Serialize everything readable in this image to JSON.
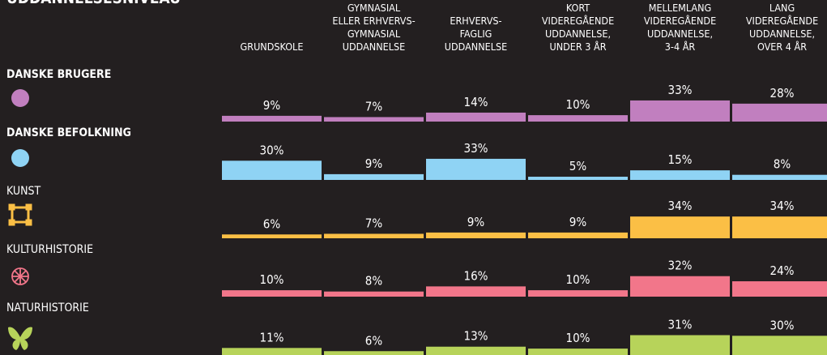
{
  "chart_data": {
    "type": "bar",
    "title": "UDDANNELSESNIVEAU",
    "categories": [
      [
        "GRUNDSKOLE"
      ],
      [
        "GYMNASIAL",
        "ELLER ERHVERVS-",
        "GYMNASIAL",
        "UDDANNELSE"
      ],
      [
        "ERHVERVS-",
        "FAGLIG",
        "UDDANNELSE"
      ],
      [
        "KORT",
        "VIDEREGÅENDE",
        "UDDANNELSE,",
        "UNDER 3 ÅR"
      ],
      [
        "MELLEMLANG",
        "VIDEREGÅENDE",
        "UDDANNELSE,",
        "3-4 ÅR"
      ],
      [
        "LANG",
        "VIDEREGÅENDE",
        "UDDANNELSE,",
        "OVER 4 ÅR"
      ]
    ],
    "series": [
      {
        "name": "DANSKE BRUGERE",
        "color": "#c17fbf",
        "values": [
          9,
          7,
          14,
          10,
          33,
          28
        ],
        "value_labels": [
          "9%",
          "7%",
          "14%",
          "10%",
          "33%",
          "28%"
        ]
      },
      {
        "name": "DANSKE BEFOLKNING",
        "color": "#8fd3f4",
        "values": [
          30,
          9,
          33,
          5,
          15,
          8
        ],
        "value_labels": [
          "30%",
          "9%",
          "33%",
          "5%",
          "15%",
          "8%"
        ]
      },
      {
        "name": "KUNST",
        "color": "#fbbf45",
        "values": [
          6,
          7,
          9,
          9,
          34,
          34
        ],
        "value_labels": [
          "6%",
          "7%",
          "9%",
          "9%",
          "34%",
          "34%"
        ]
      },
      {
        "name": "KULTURHISTORIE",
        "color": "#f2768a",
        "values": [
          10,
          8,
          16,
          10,
          32,
          24
        ],
        "value_labels": [
          "10%",
          "8%",
          "16%",
          "10%",
          "32%",
          "24%"
        ]
      },
      {
        "name": "NATURHISTORIE",
        "color": "#b7d35a",
        "values": [
          11,
          6,
          13,
          10,
          31,
          30
        ],
        "value_labels": [
          "11%",
          "6%",
          "13%",
          "10%",
          "31%",
          "30%"
        ]
      }
    ]
  }
}
